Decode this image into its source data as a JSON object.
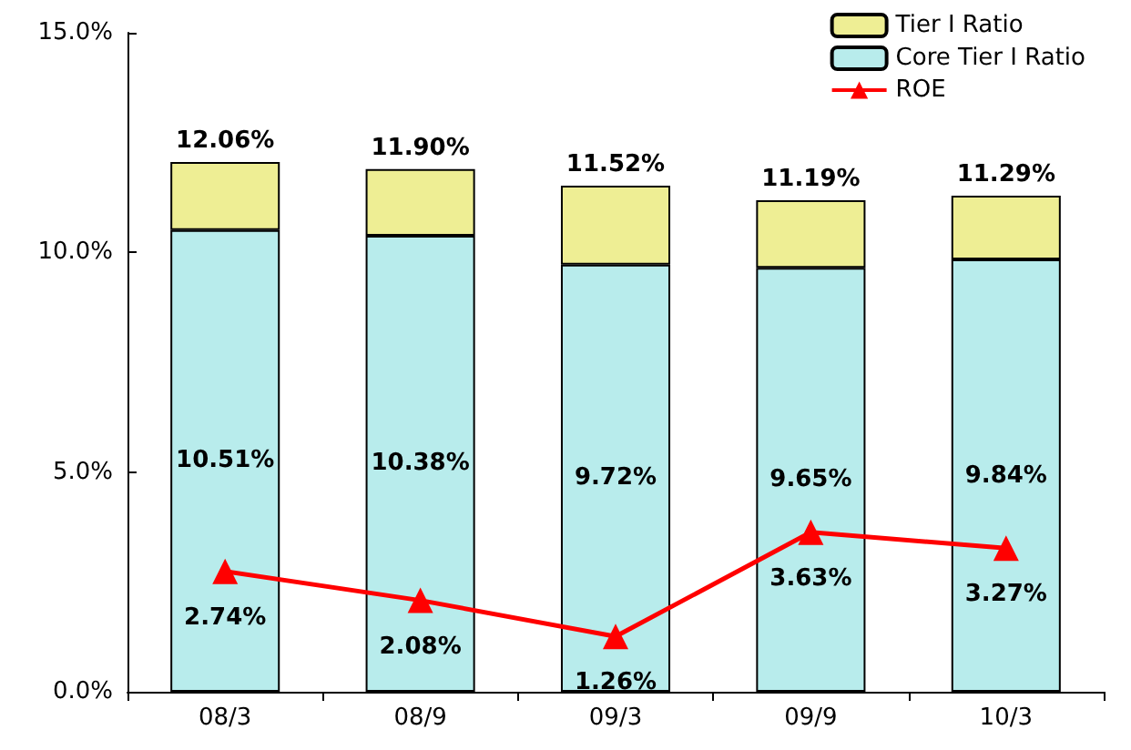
{
  "chart_data": {
    "type": "bar",
    "stacked": true,
    "categories": [
      "08/3",
      "08/9",
      "09/3",
      "09/9",
      "10/3"
    ],
    "series": [
      {
        "name": "Core Tier I Ratio",
        "color": "#b8ecec",
        "values": [
          10.51,
          10.38,
          9.72,
          9.65,
          9.84
        ],
        "value_labels": [
          "10.51%",
          "10.38%",
          "9.72%",
          "9.65%",
          "9.84%"
        ]
      },
      {
        "name": "Tier I Ratio",
        "color": "#eeee94",
        "values": [
          1.55,
          1.52,
          1.8,
          1.54,
          1.45
        ]
      },
      {
        "name": "ROE",
        "type": "line",
        "color": "#ff0000",
        "marker": "triangle",
        "values": [
          2.74,
          2.08,
          1.26,
          3.63,
          3.27
        ],
        "value_labels": [
          "2.74%",
          "2.08%",
          "1.26%",
          "3.63%",
          "3.27%"
        ]
      }
    ],
    "totals": [
      "12.06%",
      "11.90%",
      "11.52%",
      "11.19%",
      "11.29%"
    ],
    "ylim": [
      0,
      15
    ],
    "yticks": [
      {
        "value": 0,
        "label": "0.0%"
      },
      {
        "value": 5,
        "label": "5.0%"
      },
      {
        "value": 10,
        "label": "10.0%"
      },
      {
        "value": 15,
        "label": "15.0%"
      }
    ],
    "grid": false,
    "legend": "top right"
  }
}
